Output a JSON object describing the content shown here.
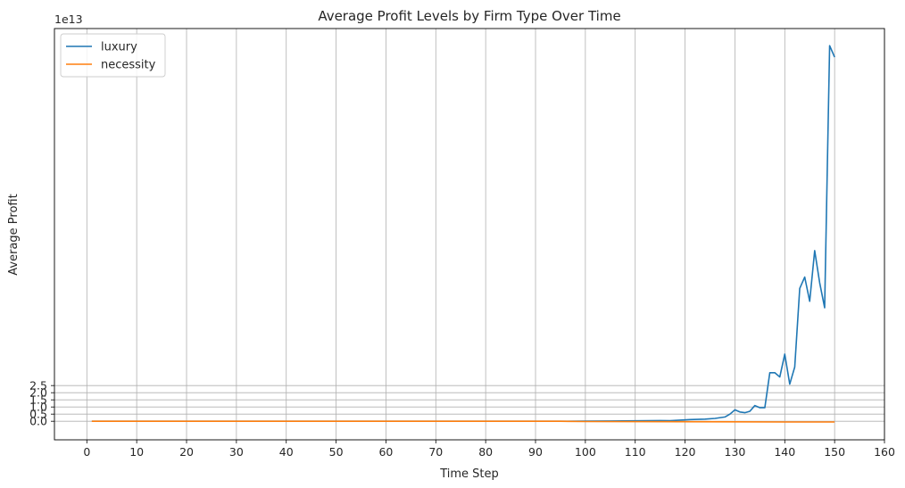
{
  "chart_data": {
    "type": "line",
    "title": "Average Profit Levels by Firm Type Over Time",
    "xlabel": "Time Step",
    "ylabel": "Average Profit",
    "y_scale_label": "1e13",
    "xlim": [
      -6.5,
      160
    ],
    "ylim": [
      -1.3,
      27.5
    ],
    "x_ticks": [
      0,
      10,
      20,
      30,
      40,
      50,
      60,
      70,
      80,
      90,
      100,
      110,
      120,
      130,
      140,
      150,
      160
    ],
    "y_ticks": [
      0.0,
      0.5,
      1.0,
      1.5,
      2.0,
      2.5
    ],
    "y_tick_labels": [
      "0.0",
      "0.5",
      "1.0",
      "1.5",
      "2.0",
      "2.5"
    ],
    "grid": true,
    "legend_position": "top-left",
    "series": [
      {
        "name": "luxury",
        "color": "#1f77b4",
        "points": [
          [
            1,
            0.0
          ],
          [
            95,
            0.0
          ],
          [
            100,
            0.01
          ],
          [
            105,
            0.02
          ],
          [
            110,
            0.03
          ],
          [
            115,
            0.05
          ],
          [
            117,
            0.04
          ],
          [
            119,
            0.08
          ],
          [
            121,
            0.12
          ],
          [
            124,
            0.15
          ],
          [
            126,
            0.2
          ],
          [
            128,
            0.3
          ],
          [
            129,
            0.5
          ],
          [
            130,
            0.8
          ],
          [
            131,
            0.65
          ],
          [
            132,
            0.6
          ],
          [
            133,
            0.7
          ],
          [
            134,
            1.1
          ],
          [
            135,
            0.95
          ],
          [
            136,
            0.95
          ],
          [
            137,
            3.4
          ],
          [
            138,
            3.4
          ],
          [
            139,
            3.1
          ],
          [
            140,
            4.7
          ],
          [
            141,
            2.6
          ],
          [
            142,
            3.8
          ],
          [
            143,
            9.3
          ],
          [
            144,
            10.1
          ],
          [
            145,
            8.4
          ],
          [
            146,
            11.95
          ],
          [
            147,
            9.7
          ],
          [
            148,
            7.95
          ],
          [
            149,
            26.3
          ],
          [
            150,
            25.5
          ]
        ]
      },
      {
        "name": "necessity",
        "color": "#ff7f0e",
        "points": [
          [
            1,
            0.0
          ],
          [
            95,
            0.0
          ],
          [
            100,
            -0.02
          ],
          [
            130,
            -0.04
          ],
          [
            140,
            -0.05
          ],
          [
            150,
            -0.05
          ]
        ]
      }
    ]
  }
}
